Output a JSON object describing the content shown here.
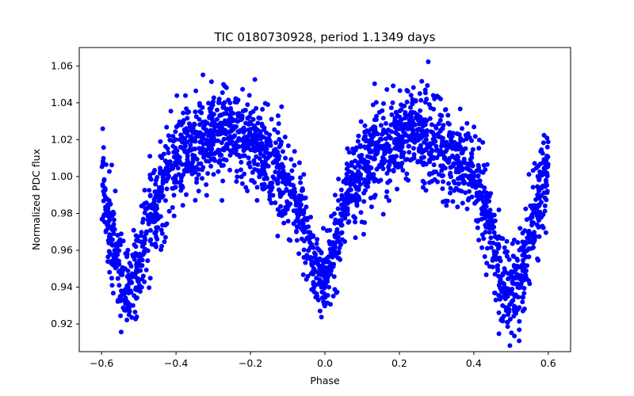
{
  "chart_data": {
    "type": "scatter",
    "title": "TIC 0180730928, period 1.1349 days",
    "xlabel": "Phase",
    "ylabel": "Normalized PDC flux",
    "xlim": [
      -0.66,
      0.66
    ],
    "ylim": [
      0.905,
      1.07
    ],
    "xticks": [
      -0.6,
      -0.4,
      -0.2,
      0.0,
      0.2,
      0.4,
      0.6
    ],
    "xtick_labels": [
      "−0.6",
      "−0.4",
      "−0.2",
      "0.0",
      "0.2",
      "0.4",
      "0.6"
    ],
    "yticks": [
      0.92,
      0.94,
      0.96,
      0.98,
      1.0,
      1.02,
      1.04,
      1.06
    ],
    "ytick_labels": [
      "0.92",
      "0.94",
      "0.96",
      "0.98",
      "1.00",
      "1.02",
      "1.04",
      "1.06"
    ],
    "grid": false,
    "series": [
      {
        "name": "PDC flux",
        "color": "#0000ff",
        "marker": "circle",
        "x_range": [
          -0.6,
          0.6
        ],
        "point_count": 2600,
        "envelope": {
          "phase": [
            -0.6,
            -0.58,
            -0.55,
            -0.53,
            -0.5,
            -0.47,
            -0.44,
            -0.4,
            -0.35,
            -0.3,
            -0.26,
            -0.2,
            -0.15,
            -0.1,
            -0.06,
            -0.03,
            -0.01,
            0.01,
            0.03,
            0.06,
            0.1,
            0.15,
            0.2,
            0.25,
            0.3,
            0.35,
            0.4,
            0.44,
            0.47,
            0.5,
            0.53,
            0.55,
            0.58,
            0.6
          ],
          "mean": [
            1.0,
            0.975,
            0.945,
            0.935,
            0.95,
            0.975,
            0.995,
            1.01,
            1.018,
            1.022,
            1.023,
            1.02,
            1.01,
            0.995,
            0.975,
            0.955,
            0.945,
            0.95,
            0.965,
            0.99,
            1.005,
            1.015,
            1.022,
            1.023,
            1.02,
            1.012,
            0.998,
            0.975,
            0.95,
            0.935,
            0.945,
            0.965,
            0.99,
            1.005
          ],
          "spread": [
            0.02,
            0.022,
            0.02,
            0.018,
            0.02,
            0.022,
            0.022,
            0.021,
            0.02,
            0.02,
            0.02,
            0.02,
            0.02,
            0.021,
            0.02,
            0.018,
            0.016,
            0.016,
            0.018,
            0.02,
            0.02,
            0.02,
            0.019,
            0.019,
            0.02,
            0.02,
            0.021,
            0.022,
            0.022,
            0.02,
            0.02,
            0.021,
            0.022,
            0.02
          ]
        }
      }
    ],
    "annotations": []
  }
}
